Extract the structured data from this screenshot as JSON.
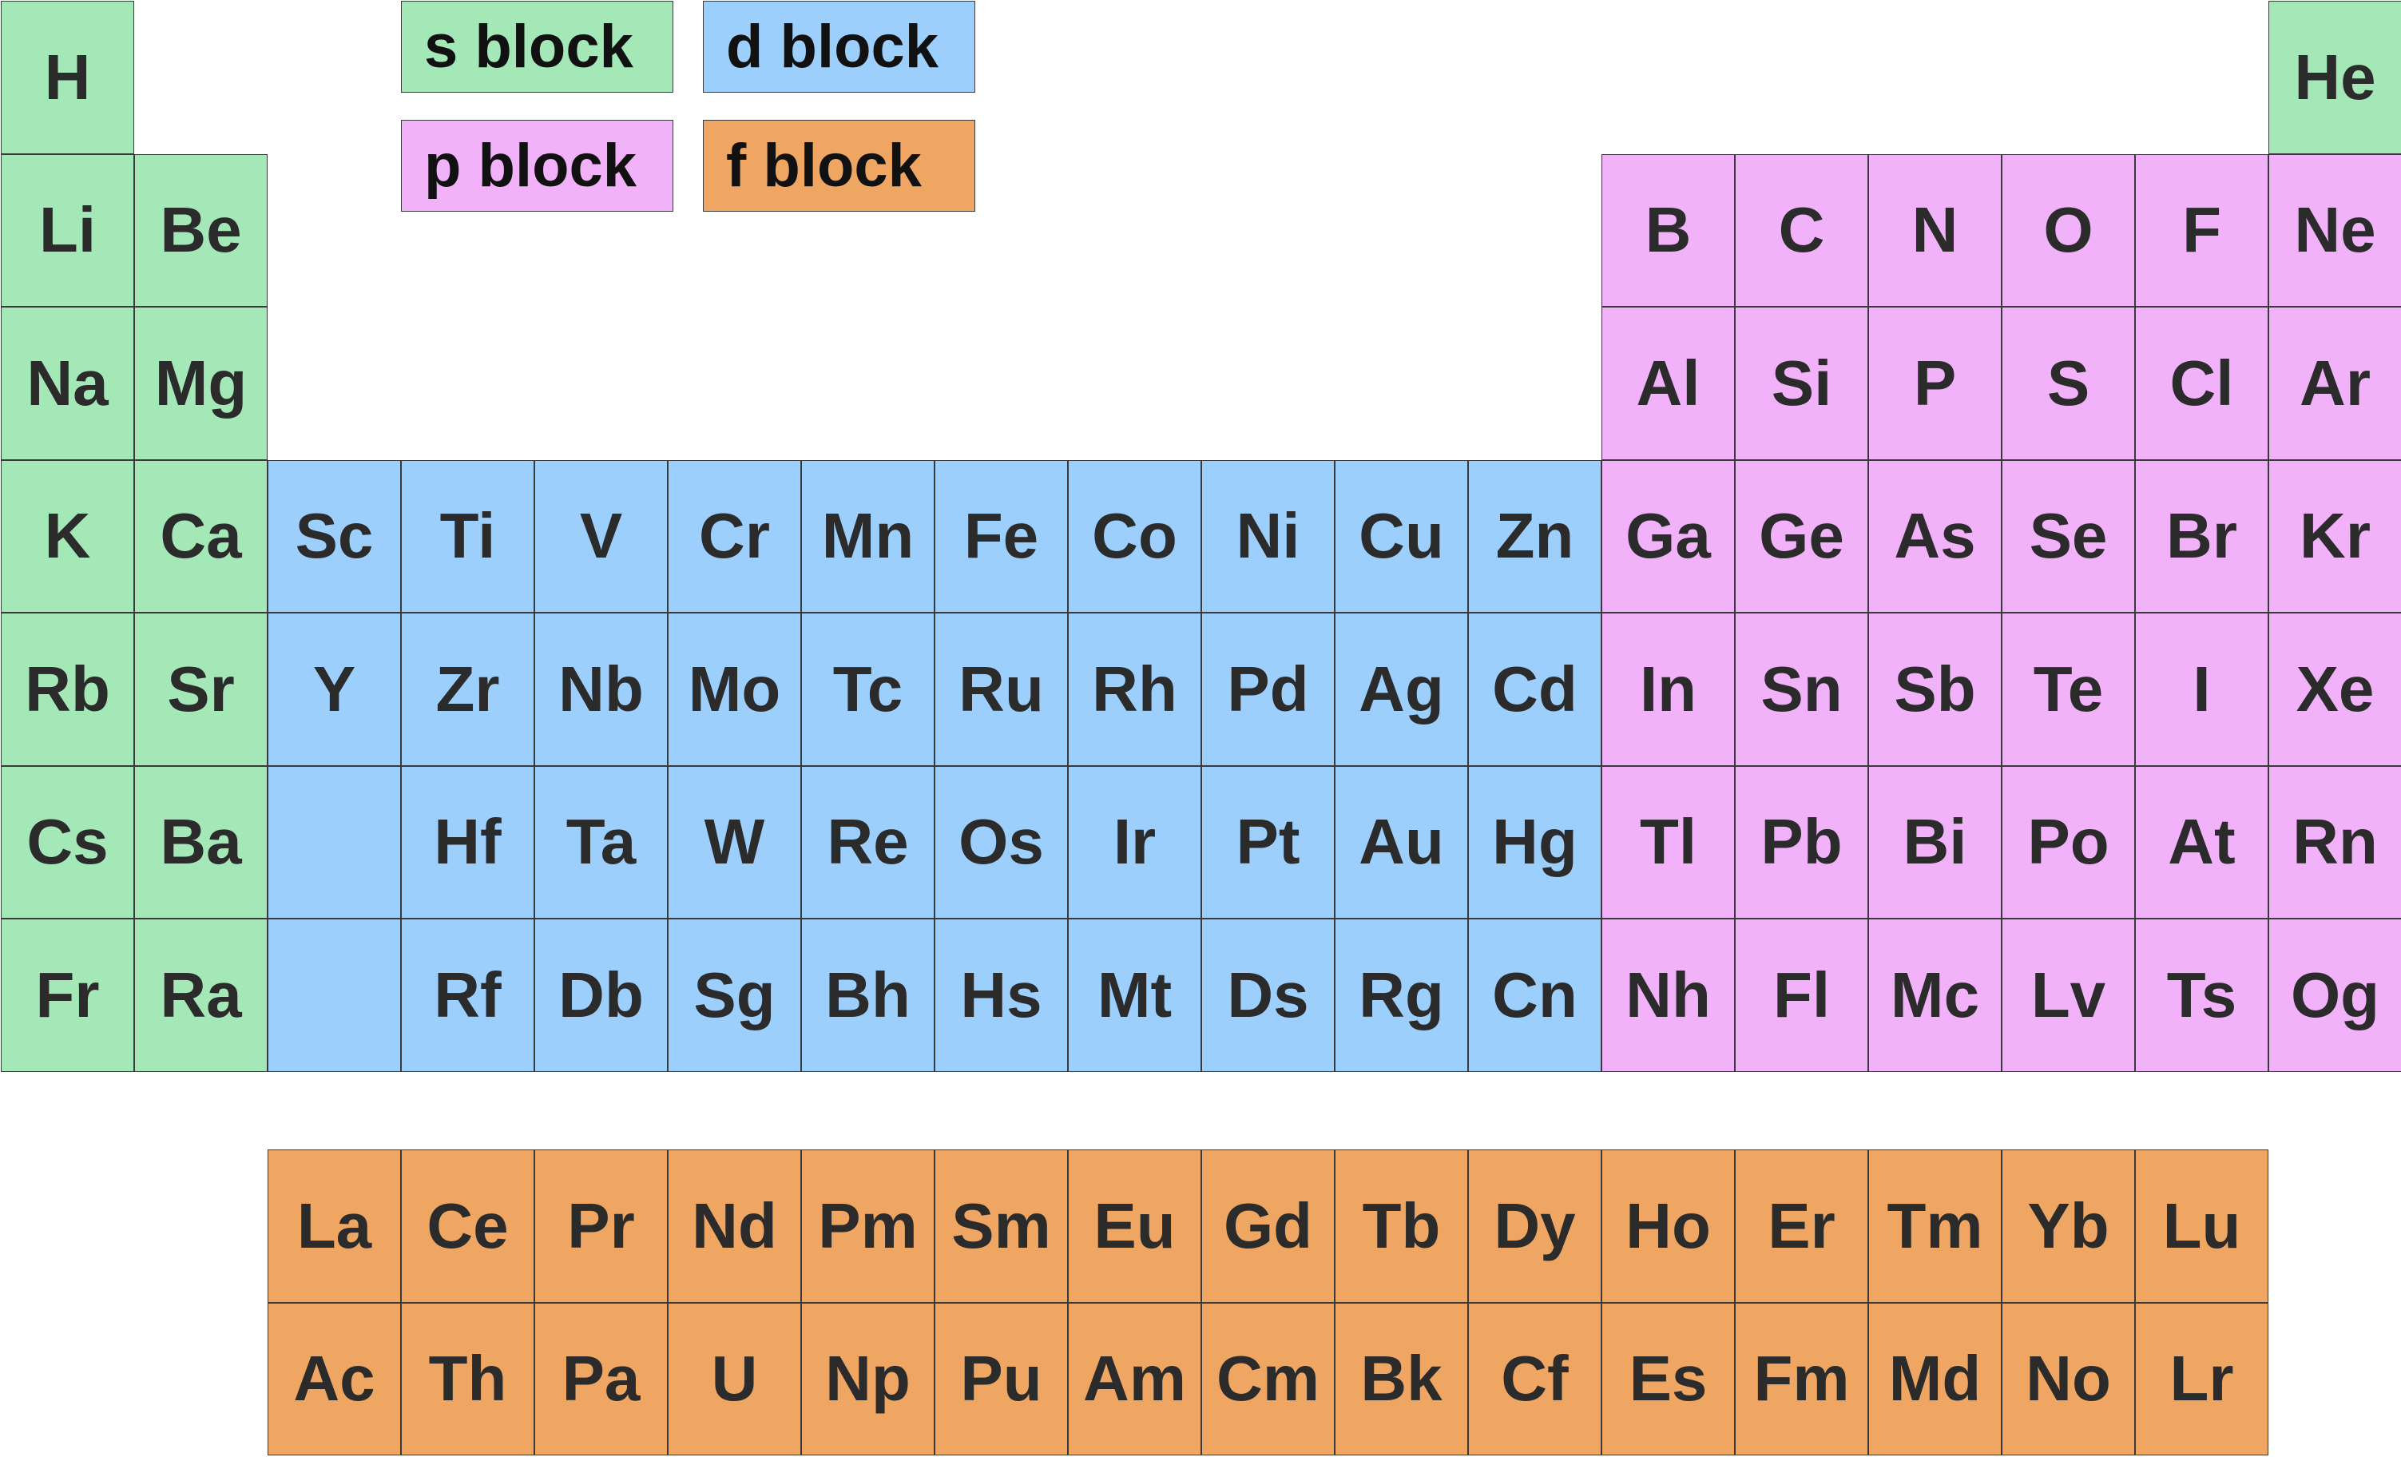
{
  "colors": {
    "s": "#a4e8b8",
    "d": "#9dcffc",
    "p": "#f1b2f9",
    "f": "#efa662"
  },
  "legend": [
    {
      "block": "s",
      "label": "s block"
    },
    {
      "block": "d",
      "label": "d block"
    },
    {
      "block": "p",
      "label": "p block"
    },
    {
      "block": "f",
      "label": "f block"
    }
  ],
  "main_table": [
    [
      {
        "s": "H",
        "b": "s"
      },
      null,
      null,
      null,
      null,
      null,
      null,
      null,
      null,
      null,
      null,
      null,
      null,
      null,
      null,
      null,
      null,
      {
        "s": "He",
        "b": "s"
      }
    ],
    [
      {
        "s": "Li",
        "b": "s"
      },
      {
        "s": "Be",
        "b": "s"
      },
      null,
      null,
      null,
      null,
      null,
      null,
      null,
      null,
      null,
      null,
      {
        "s": "B",
        "b": "p"
      },
      {
        "s": "C",
        "b": "p"
      },
      {
        "s": "N",
        "b": "p"
      },
      {
        "s": "O",
        "b": "p"
      },
      {
        "s": "F",
        "b": "p"
      },
      {
        "s": "Ne",
        "b": "p"
      }
    ],
    [
      {
        "s": "Na",
        "b": "s"
      },
      {
        "s": "Mg",
        "b": "s"
      },
      null,
      null,
      null,
      null,
      null,
      null,
      null,
      null,
      null,
      null,
      {
        "s": "Al",
        "b": "p"
      },
      {
        "s": "Si",
        "b": "p"
      },
      {
        "s": "P",
        "b": "p"
      },
      {
        "s": "S",
        "b": "p"
      },
      {
        "s": "Cl",
        "b": "p"
      },
      {
        "s": "Ar",
        "b": "p"
      }
    ],
    [
      {
        "s": "K",
        "b": "s"
      },
      {
        "s": "Ca",
        "b": "s"
      },
      {
        "s": "Sc",
        "b": "d"
      },
      {
        "s": "Ti",
        "b": "d"
      },
      {
        "s": "V",
        "b": "d"
      },
      {
        "s": "Cr",
        "b": "d"
      },
      {
        "s": "Mn",
        "b": "d"
      },
      {
        "s": "Fe",
        "b": "d"
      },
      {
        "s": "Co",
        "b": "d"
      },
      {
        "s": "Ni",
        "b": "d"
      },
      {
        "s": "Cu",
        "b": "d"
      },
      {
        "s": "Zn",
        "b": "d"
      },
      {
        "s": "Ga",
        "b": "p"
      },
      {
        "s": "Ge",
        "b": "p"
      },
      {
        "s": "As",
        "b": "p"
      },
      {
        "s": "Se",
        "b": "p"
      },
      {
        "s": "Br",
        "b": "p"
      },
      {
        "s": "Kr",
        "b": "p"
      }
    ],
    [
      {
        "s": "Rb",
        "b": "s"
      },
      {
        "s": "Sr",
        "b": "s"
      },
      {
        "s": "Y",
        "b": "d"
      },
      {
        "s": "Zr",
        "b": "d"
      },
      {
        "s": "Nb",
        "b": "d"
      },
      {
        "s": "Mo",
        "b": "d"
      },
      {
        "s": "Tc",
        "b": "d"
      },
      {
        "s": "Ru",
        "b": "d"
      },
      {
        "s": "Rh",
        "b": "d"
      },
      {
        "s": "Pd",
        "b": "d"
      },
      {
        "s": "Ag",
        "b": "d"
      },
      {
        "s": "Cd",
        "b": "d"
      },
      {
        "s": "In",
        "b": "p"
      },
      {
        "s": "Sn",
        "b": "p"
      },
      {
        "s": "Sb",
        "b": "p"
      },
      {
        "s": "Te",
        "b": "p"
      },
      {
        "s": "I",
        "b": "p"
      },
      {
        "s": "Xe",
        "b": "p"
      }
    ],
    [
      {
        "s": "Cs",
        "b": "s"
      },
      {
        "s": "Ba",
        "b": "s"
      },
      {
        "s": "",
        "b": "d"
      },
      {
        "s": "Hf",
        "b": "d"
      },
      {
        "s": "Ta",
        "b": "d"
      },
      {
        "s": "W",
        "b": "d"
      },
      {
        "s": "Re",
        "b": "d"
      },
      {
        "s": "Os",
        "b": "d"
      },
      {
        "s": "Ir",
        "b": "d"
      },
      {
        "s": "Pt",
        "b": "d"
      },
      {
        "s": "Au",
        "b": "d"
      },
      {
        "s": "Hg",
        "b": "d"
      },
      {
        "s": "Tl",
        "b": "p"
      },
      {
        "s": "Pb",
        "b": "p"
      },
      {
        "s": "Bi",
        "b": "p"
      },
      {
        "s": "Po",
        "b": "p"
      },
      {
        "s": "At",
        "b": "p"
      },
      {
        "s": "Rn",
        "b": "p"
      }
    ],
    [
      {
        "s": "Fr",
        "b": "s"
      },
      {
        "s": "Ra",
        "b": "s"
      },
      {
        "s": "",
        "b": "d"
      },
      {
        "s": "Rf",
        "b": "d"
      },
      {
        "s": "Db",
        "b": "d"
      },
      {
        "s": "Sg",
        "b": "d"
      },
      {
        "s": "Bh",
        "b": "d"
      },
      {
        "s": "Hs",
        "b": "d"
      },
      {
        "s": "Mt",
        "b": "d"
      },
      {
        "s": "Ds",
        "b": "d"
      },
      {
        "s": "Rg",
        "b": "d"
      },
      {
        "s": "Cn",
        "b": "d"
      },
      {
        "s": "Nh",
        "b": "p"
      },
      {
        "s": "Fl",
        "b": "p"
      },
      {
        "s": "Mc",
        "b": "p"
      },
      {
        "s": "Lv",
        "b": "p"
      },
      {
        "s": "Ts",
        "b": "p"
      },
      {
        "s": "Og",
        "b": "p"
      }
    ]
  ],
  "f_block": {
    "lanthanides": [
      "La",
      "Ce",
      "Pr",
      "Nd",
      "Pm",
      "Sm",
      "Eu",
      "Gd",
      "Tb",
      "Dy",
      "Ho",
      "Er",
      "Tm",
      "Yb",
      "Lu"
    ],
    "actinides": [
      "Ac",
      "Th",
      "Pa",
      "U",
      "Np",
      "Pu",
      "Am",
      "Cm",
      "Bk",
      "Cf",
      "Es",
      "Fm",
      "Md",
      "No",
      "Lr"
    ]
  }
}
